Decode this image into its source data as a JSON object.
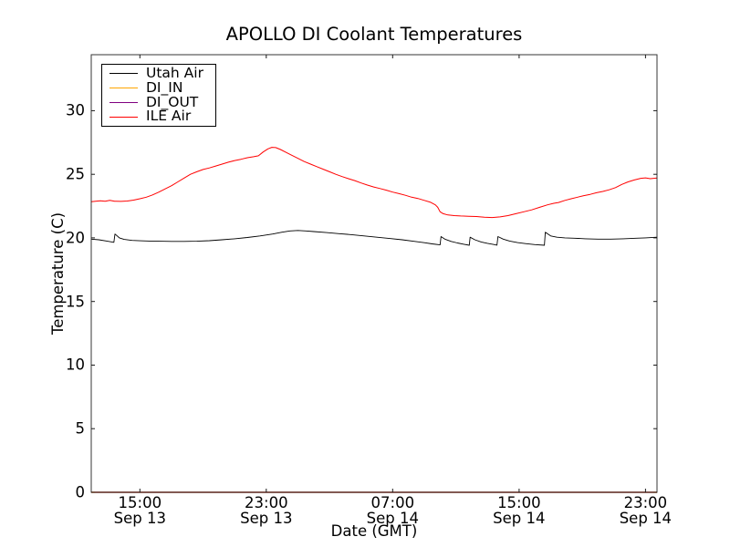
{
  "figure": {
    "background": "#ffffff",
    "frame_color": "#1a1a1a"
  },
  "chart_data": {
    "type": "line",
    "title": "APOLLO DI Coolant Temperatures",
    "xlabel": "Date (GMT)",
    "ylabel": "Temperature (C)",
    "grid": false,
    "legend_position": "upper left",
    "x_axis": {
      "note": "hours since Sep 13 00:00 GMT",
      "min": 11.92,
      "max": 47.73
    },
    "y_axis": {
      "min": 0,
      "max": 34.4
    },
    "y_ticks": [
      0,
      5,
      10,
      15,
      20,
      25,
      30
    ],
    "x_ticks": [
      {
        "hour": 15,
        "time": "15:00",
        "date": "Sep 13"
      },
      {
        "hour": 23,
        "time": "23:00",
        "date": "Sep 13"
      },
      {
        "hour": 31,
        "time": "07:00",
        "date": "Sep 14"
      },
      {
        "hour": 39,
        "time": "15:00",
        "date": "Sep 14"
      },
      {
        "hour": 47,
        "time": "23:00",
        "date": "Sep 14"
      }
    ],
    "series": [
      {
        "name": "Utah Air",
        "color": "#000000",
        "width": 0.9,
        "points": [
          [
            11.92,
            19.9
          ],
          [
            12.4,
            19.85
          ],
          [
            12.9,
            19.75
          ],
          [
            13.35,
            19.65
          ],
          [
            13.42,
            20.3
          ],
          [
            13.7,
            20.0
          ],
          [
            14.0,
            19.88
          ],
          [
            14.5,
            19.8
          ],
          [
            15.0,
            19.77
          ],
          [
            15.6,
            19.75
          ],
          [
            16.2,
            19.74
          ],
          [
            17.0,
            19.72
          ],
          [
            17.8,
            19.72
          ],
          [
            18.6,
            19.74
          ],
          [
            19.4,
            19.78
          ],
          [
            20.2,
            19.85
          ],
          [
            21.0,
            19.93
          ],
          [
            21.8,
            20.03
          ],
          [
            22.6,
            20.15
          ],
          [
            23.4,
            20.3
          ],
          [
            24.0,
            20.45
          ],
          [
            24.5,
            20.55
          ],
          [
            25.0,
            20.58
          ],
          [
            25.5,
            20.55
          ],
          [
            26.0,
            20.5
          ],
          [
            26.8,
            20.42
          ],
          [
            27.6,
            20.33
          ],
          [
            28.4,
            20.25
          ],
          [
            29.2,
            20.15
          ],
          [
            30.0,
            20.05
          ],
          [
            30.8,
            19.95
          ],
          [
            31.6,
            19.85
          ],
          [
            32.4,
            19.72
          ],
          [
            33.0,
            19.62
          ],
          [
            33.5,
            19.53
          ],
          [
            34.0,
            19.45
          ],
          [
            34.06,
            20.1
          ],
          [
            34.3,
            19.9
          ],
          [
            34.7,
            19.72
          ],
          [
            35.1,
            19.6
          ],
          [
            35.5,
            19.5
          ],
          [
            35.85,
            19.42
          ],
          [
            35.9,
            20.05
          ],
          [
            36.2,
            19.85
          ],
          [
            36.6,
            19.68
          ],
          [
            37.0,
            19.57
          ],
          [
            37.4,
            19.48
          ],
          [
            37.6,
            19.43
          ],
          [
            37.66,
            20.1
          ],
          [
            38.0,
            19.9
          ],
          [
            38.4,
            19.75
          ],
          [
            38.9,
            19.63
          ],
          [
            39.4,
            19.55
          ],
          [
            40.0,
            19.47
          ],
          [
            40.6,
            19.42
          ],
          [
            40.66,
            20.45
          ],
          [
            41.0,
            20.15
          ],
          [
            41.4,
            20.05
          ],
          [
            41.9,
            20.0
          ],
          [
            42.5,
            19.97
          ],
          [
            43.2,
            19.93
          ],
          [
            44.0,
            19.9
          ],
          [
            44.8,
            19.9
          ],
          [
            45.6,
            19.93
          ],
          [
            46.4,
            19.97
          ],
          [
            47.0,
            20.0
          ],
          [
            47.73,
            20.05
          ]
        ]
      },
      {
        "name": "DI_IN",
        "color": "#ffa500",
        "width": 1.6,
        "points": [
          [
            11.92,
            0
          ],
          [
            47.73,
            0
          ]
        ]
      },
      {
        "name": "DI_OUT",
        "color": "#800080",
        "width": 1.2,
        "points": [
          [
            11.92,
            0
          ],
          [
            47.73,
            0
          ]
        ]
      },
      {
        "name": "ILE Air",
        "color": "#ff0000",
        "width": 1,
        "points": [
          [
            11.92,
            22.85
          ],
          [
            12.2,
            22.88
          ],
          [
            12.5,
            22.92
          ],
          [
            12.8,
            22.88
          ],
          [
            13.1,
            22.95
          ],
          [
            13.4,
            22.88
          ],
          [
            13.8,
            22.87
          ],
          [
            14.2,
            22.9
          ],
          [
            14.6,
            22.97
          ],
          [
            15.0,
            23.08
          ],
          [
            15.4,
            23.2
          ],
          [
            15.8,
            23.38
          ],
          [
            16.2,
            23.6
          ],
          [
            16.6,
            23.85
          ],
          [
            17.0,
            24.1
          ],
          [
            17.4,
            24.4
          ],
          [
            17.8,
            24.7
          ],
          [
            18.2,
            25.0
          ],
          [
            18.6,
            25.2
          ],
          [
            19.0,
            25.38
          ],
          [
            19.4,
            25.5
          ],
          [
            19.8,
            25.65
          ],
          [
            20.2,
            25.8
          ],
          [
            20.6,
            25.95
          ],
          [
            21.0,
            26.08
          ],
          [
            21.4,
            26.18
          ],
          [
            21.8,
            26.3
          ],
          [
            22.2,
            26.38
          ],
          [
            22.5,
            26.45
          ],
          [
            22.8,
            26.75
          ],
          [
            23.1,
            27.0
          ],
          [
            23.35,
            27.12
          ],
          [
            23.6,
            27.1
          ],
          [
            23.9,
            26.95
          ],
          [
            24.2,
            26.75
          ],
          [
            24.6,
            26.5
          ],
          [
            25.0,
            26.25
          ],
          [
            25.4,
            26.0
          ],
          [
            25.8,
            25.8
          ],
          [
            26.2,
            25.6
          ],
          [
            26.6,
            25.4
          ],
          [
            27.0,
            25.2
          ],
          [
            27.4,
            25.0
          ],
          [
            27.8,
            24.82
          ],
          [
            28.2,
            24.65
          ],
          [
            28.6,
            24.5
          ],
          [
            29.0,
            24.32
          ],
          [
            29.4,
            24.15
          ],
          [
            29.8,
            24.0
          ],
          [
            30.2,
            23.88
          ],
          [
            30.6,
            23.75
          ],
          [
            31.0,
            23.6
          ],
          [
            31.4,
            23.48
          ],
          [
            31.8,
            23.35
          ],
          [
            32.2,
            23.2
          ],
          [
            32.6,
            23.1
          ],
          [
            33.0,
            22.95
          ],
          [
            33.4,
            22.8
          ],
          [
            33.7,
            22.6
          ],
          [
            33.85,
            22.4
          ],
          [
            34.0,
            22.05
          ],
          [
            34.2,
            21.9
          ],
          [
            34.5,
            21.8
          ],
          [
            34.9,
            21.75
          ],
          [
            35.3,
            21.72
          ],
          [
            35.8,
            21.7
          ],
          [
            36.3,
            21.68
          ],
          [
            36.8,
            21.62
          ],
          [
            37.3,
            21.6
          ],
          [
            37.8,
            21.65
          ],
          [
            38.3,
            21.75
          ],
          [
            38.8,
            21.9
          ],
          [
            39.3,
            22.05
          ],
          [
            39.8,
            22.2
          ],
          [
            40.3,
            22.4
          ],
          [
            40.8,
            22.6
          ],
          [
            41.2,
            22.72
          ],
          [
            41.5,
            22.78
          ],
          [
            41.9,
            22.95
          ],
          [
            42.3,
            23.08
          ],
          [
            42.7,
            23.2
          ],
          [
            43.1,
            23.32
          ],
          [
            43.5,
            23.42
          ],
          [
            43.9,
            23.55
          ],
          [
            44.3,
            23.65
          ],
          [
            44.7,
            23.78
          ],
          [
            45.1,
            23.95
          ],
          [
            45.5,
            24.2
          ],
          [
            45.9,
            24.4
          ],
          [
            46.3,
            24.55
          ],
          [
            46.7,
            24.68
          ],
          [
            47.0,
            24.72
          ],
          [
            47.3,
            24.65
          ],
          [
            47.73,
            24.7
          ]
        ]
      }
    ]
  }
}
